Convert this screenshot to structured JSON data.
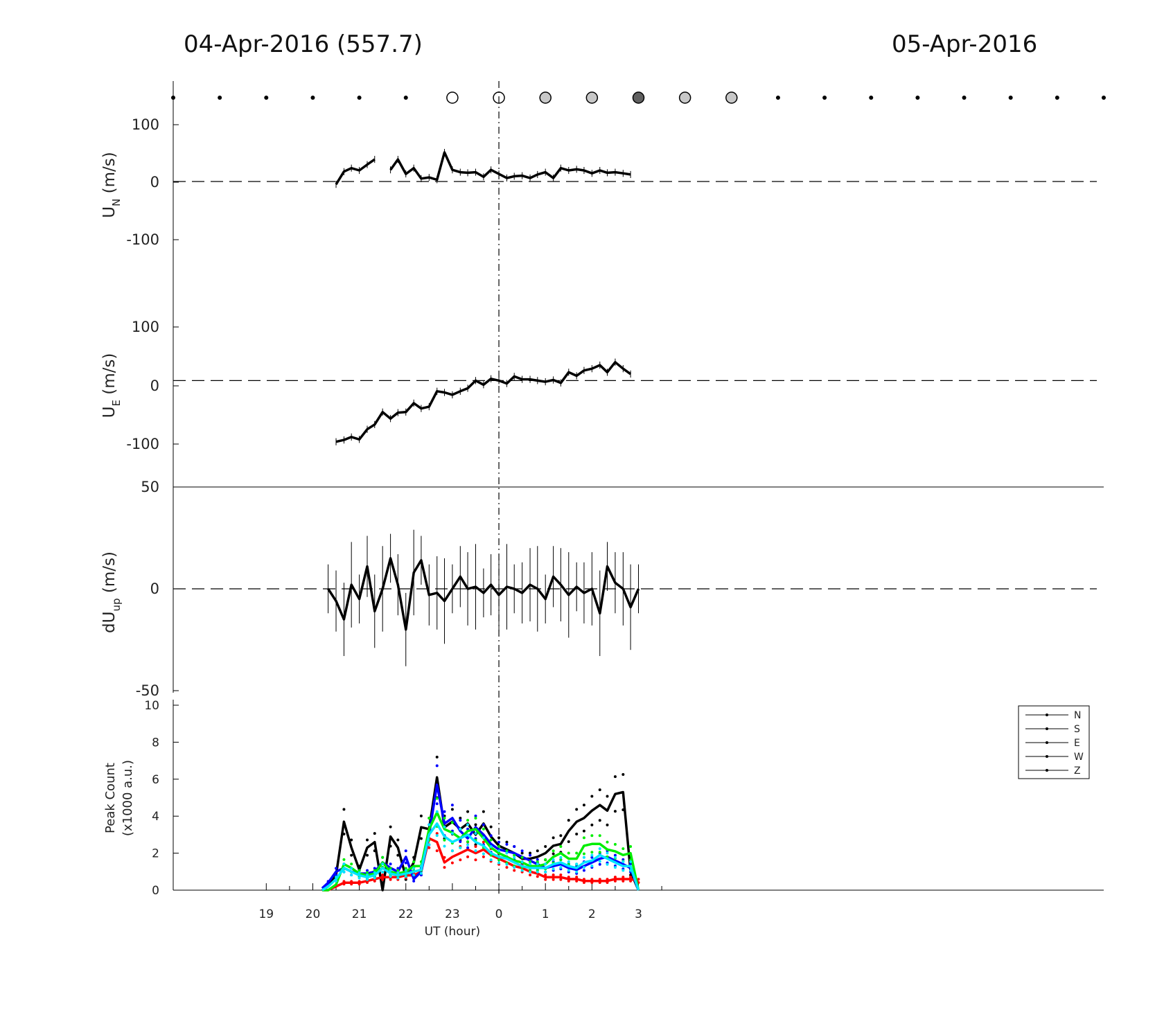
{
  "header": {
    "left_title": "04-Apr-2016 (557.7)",
    "right_title": "05-Apr-2016"
  },
  "chart_data": [
    {
      "type": "scatter",
      "panel": "sky-condition",
      "x": [
        17,
        18,
        19,
        20,
        21,
        22,
        23,
        24,
        25,
        26,
        27,
        28,
        29,
        30,
        31,
        32,
        33,
        34,
        35,
        36,
        37
      ],
      "kind": [
        "dot",
        "dot",
        "dot",
        "dot",
        "dot",
        "dot",
        "open",
        "open",
        "light",
        "light",
        "dark",
        "light",
        "light",
        "dot",
        "dot",
        "dot",
        "dot",
        "dot",
        "dot",
        "dot",
        "dot"
      ],
      "colors": {
        "open": "#ffffff",
        "light": "#c8c8c8",
        "dark": "#606060",
        "dot": "#000000"
      }
    },
    {
      "type": "line",
      "panel": "UN",
      "ylabel": "U",
      "ylabel_sub": "N",
      "ylabel_unit": " (m/s)",
      "ylim": [
        -100,
        100
      ],
      "yticks": [
        "100",
        "0",
        "-100"
      ],
      "segments": [
        {
          "x": [
            20.5,
            20.67,
            20.83,
            21.0,
            21.17,
            21.33
          ],
          "y": [
            -5,
            17,
            23,
            19,
            29,
            38
          ]
        },
        {
          "x": [
            21.67,
            21.83,
            22.0,
            22.17,
            22.33,
            22.5,
            22.67,
            22.83,
            23.0,
            23.17,
            23.33,
            23.5,
            23.67,
            23.83,
            24.0,
            24.17,
            24.33,
            24.5,
            24.67,
            24.83,
            25.0,
            25.17,
            25.33,
            25.5,
            25.67,
            25.83,
            26.0,
            26.17,
            26.33,
            26.5,
            26.67,
            26.83
          ],
          "y": [
            20,
            38,
            13,
            23,
            5,
            7,
            3,
            50,
            20,
            16,
            15,
            16,
            8,
            20,
            13,
            6,
            9,
            10,
            6,
            12,
            16,
            6,
            23,
            19,
            21,
            19,
            14,
            19,
            15,
            16,
            14,
            12
          ]
        }
      ]
    },
    {
      "type": "line",
      "panel": "UE",
      "ylabel": "U",
      "ylabel_sub": "E",
      "ylabel_unit": " (m/s)",
      "ylim": [
        -115,
        110
      ],
      "yticks": [
        "100",
        "0",
        "-100"
      ],
      "segments": [
        {
          "x": [
            20.5,
            20.67,
            20.83,
            21.0,
            21.17,
            21.33,
            21.5,
            21.67,
            21.83,
            22.0,
            22.17,
            22.33,
            22.5,
            22.67,
            22.83,
            23.0,
            23.17,
            23.33,
            23.5,
            23.67,
            23.83,
            24.0,
            24.17,
            24.33,
            24.5,
            24.67,
            24.83,
            25.0,
            25.17,
            25.33,
            25.5,
            25.67,
            25.83,
            26.0,
            26.17,
            26.33,
            26.5,
            26.67,
            26.83
          ],
          "y": [
            -103,
            -100,
            -95,
            -99,
            -82,
            -74,
            -53,
            -64,
            -54,
            -53,
            -38,
            -47,
            -44,
            -18,
            -20,
            -24,
            -18,
            -13,
            0,
            -7,
            3,
            0,
            -5,
            7,
            2,
            2,
            0,
            -2,
            1,
            -4,
            14,
            8,
            17,
            20,
            26,
            14,
            31,
            20,
            11
          ]
        }
      ]
    },
    {
      "type": "line",
      "panel": "dUup",
      "ylabel": "dU",
      "ylabel_sub": "up",
      "ylabel_unit": " (m/s)",
      "ylim": [
        -50,
        50
      ],
      "yticks": [
        "50",
        "0",
        "-50"
      ],
      "segments": [
        {
          "x": [
            20.33,
            20.5,
            20.67,
            20.83,
            21.0,
            21.17,
            21.33,
            21.5,
            21.67,
            21.83,
            22.0,
            22.17,
            22.33,
            22.5,
            22.67,
            22.83,
            23.0,
            23.17,
            23.33,
            23.5,
            23.67,
            23.83,
            24.0,
            24.17,
            24.33,
            24.5,
            24.67,
            24.83,
            25.0,
            25.17,
            25.33,
            25.5,
            25.67,
            25.83,
            26.0,
            26.17,
            26.33,
            26.5,
            26.67,
            26.83,
            27.0
          ],
          "y": [
            0,
            -6,
            -15,
            2,
            -5,
            11,
            -11,
            0,
            15,
            2,
            -20,
            8,
            14,
            -3,
            -2,
            -6,
            0,
            6,
            0,
            1,
            -2,
            2,
            -3,
            1,
            0,
            -2,
            2,
            0,
            -5,
            6,
            2,
            -3,
            1,
            -2,
            0,
            -12,
            11,
            3,
            0,
            -9,
            0
          ]
        }
      ]
    },
    {
      "type": "line",
      "panel": "peak-count",
      "ylabel": "Peak Count",
      "ylabel2": "(x1000 a.u.)",
      "ylim": [
        0,
        10
      ],
      "yticks": [
        "0",
        "2",
        "4",
        "6",
        "8",
        "10"
      ],
      "xlabel": "UT (hour)",
      "xticks": [
        "19",
        "20",
        "21",
        "22",
        "23",
        "0",
        "1",
        "2",
        "3"
      ],
      "x": [
        20.2,
        20.33,
        20.5,
        20.67,
        20.83,
        21.0,
        21.17,
        21.33,
        21.5,
        21.67,
        21.83,
        22.0,
        22.17,
        22.33,
        22.5,
        22.67,
        22.83,
        23.0,
        23.17,
        23.33,
        23.5,
        23.67,
        23.83,
        24.0,
        24.17,
        24.33,
        24.5,
        24.67,
        24.83,
        25.0,
        25.17,
        25.33,
        25.5,
        25.67,
        25.83,
        26.0,
        26.17,
        26.33,
        26.5,
        26.67,
        26.83,
        27.0
      ],
      "series": [
        {
          "name": "N",
          "color": "#000000",
          "y": [
            0.0,
            0.2,
            0.8,
            3.7,
            2.3,
            1.1,
            2.3,
            2.6,
            0.0,
            2.9,
            2.3,
            0.7,
            1.5,
            3.4,
            3.3,
            6.1,
            3.4,
            3.7,
            3.3,
            3.6,
            3.0,
            3.6,
            2.9,
            2.4,
            2.2,
            2.0,
            1.7,
            1.7,
            1.8,
            2.0,
            2.4,
            2.5,
            3.2,
            3.7,
            3.9,
            4.3,
            4.6,
            4.3,
            5.2,
            5.3,
            1.0,
            0.0
          ]
        },
        {
          "name": "S",
          "color": "#ff0000",
          "y": [
            0.0,
            0.0,
            0.2,
            0.4,
            0.4,
            0.4,
            0.5,
            0.6,
            0.7,
            0.7,
            0.7,
            0.8,
            0.8,
            1.0,
            2.8,
            2.6,
            1.5,
            1.8,
            2.0,
            2.2,
            2.0,
            2.2,
            1.9,
            1.7,
            1.5,
            1.3,
            1.2,
            1.0,
            0.9,
            0.7,
            0.7,
            0.7,
            0.6,
            0.6,
            0.5,
            0.5,
            0.5,
            0.5,
            0.6,
            0.6,
            0.6,
            0.5
          ]
        },
        {
          "name": "E",
          "color": "#0000ff",
          "y": [
            0.1,
            0.4,
            1.0,
            1.2,
            1.0,
            0.9,
            0.9,
            1.0,
            1.5,
            1.2,
            1.0,
            1.8,
            0.6,
            1.0,
            3.0,
            5.7,
            3.6,
            3.9,
            3.2,
            2.8,
            3.4,
            3.0,
            2.5,
            2.2,
            2.1,
            2.0,
            1.8,
            1.6,
            1.4,
            1.2,
            1.3,
            1.4,
            1.2,
            1.1,
            1.3,
            1.5,
            1.7,
            1.8,
            1.6,
            1.4,
            1.2,
            0.0
          ]
        },
        {
          "name": "W",
          "color": "#00ee00",
          "y": [
            0.0,
            0.0,
            0.3,
            1.4,
            1.2,
            0.9,
            0.8,
            0.9,
            1.5,
            1.0,
            0.9,
            1.0,
            1.3,
            1.3,
            3.3,
            4.2,
            3.3,
            3.1,
            2.8,
            3.2,
            3.3,
            2.8,
            2.3,
            2.0,
            1.8,
            1.6,
            1.5,
            1.3,
            1.3,
            1.4,
            1.8,
            2.0,
            1.7,
            1.7,
            2.4,
            2.5,
            2.5,
            2.2,
            2.1,
            1.9,
            2.0,
            0.0
          ]
        },
        {
          "name": "Z",
          "color": "#00e5ff",
          "y": [
            0.0,
            0.2,
            0.6,
            1.2,
            1.0,
            0.8,
            0.7,
            0.8,
            1.2,
            0.9,
            0.8,
            0.9,
            1.0,
            1.1,
            3.0,
            3.6,
            2.9,
            2.6,
            2.8,
            3.0,
            2.6,
            2.4,
            2.0,
            1.8,
            1.7,
            1.5,
            1.3,
            1.2,
            1.2,
            1.2,
            1.4,
            1.5,
            1.3,
            1.2,
            1.5,
            1.6,
            1.9,
            1.7,
            1.5,
            1.3,
            1.3,
            0.0
          ]
        }
      ]
    }
  ]
}
